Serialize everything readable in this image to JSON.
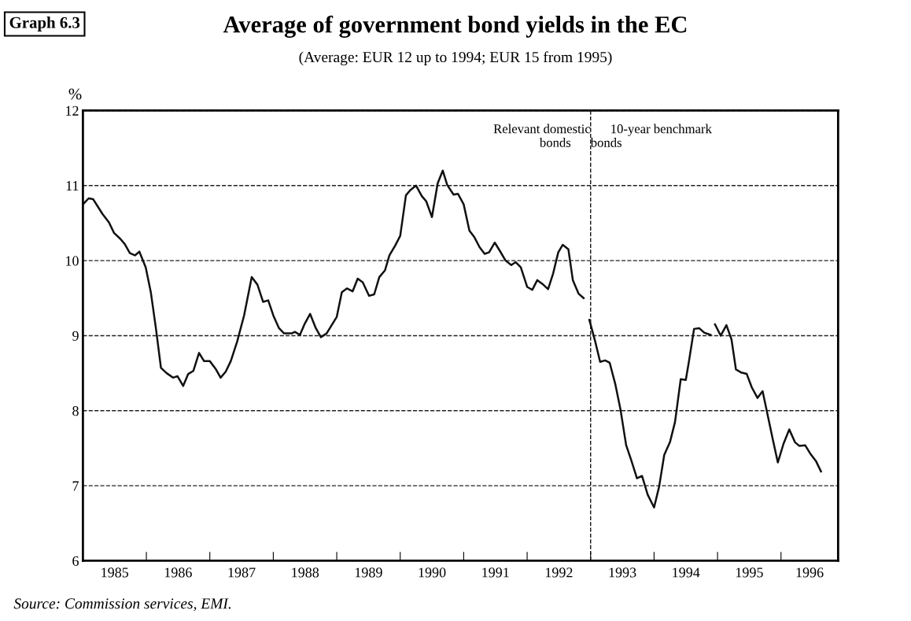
{
  "chart_data": {
    "type": "line",
    "title": "Average of government bond yields in the EC",
    "subtitle": "(Average: EUR 12 up to 1994; EUR 15 from 1995)",
    "ylabel": "%",
    "x": [
      1985.0,
      1985.09,
      1985.16,
      1985.31,
      1985.41,
      1985.49,
      1985.59,
      1985.66,
      1985.74,
      1985.82,
      1985.89,
      1985.99,
      1986.07,
      1986.15,
      1986.23,
      1986.32,
      1986.42,
      1986.49,
      1986.58,
      1986.66,
      1986.74,
      1986.83,
      1986.91,
      1987.0,
      1987.09,
      1987.17,
      1987.25,
      1987.33,
      1987.43,
      1987.54,
      1987.66,
      1987.75,
      1987.84,
      1987.92,
      1988.0,
      1988.09,
      1988.17,
      1988.29,
      1988.34,
      1988.42,
      1988.49,
      1988.58,
      1988.67,
      1988.75,
      1988.84,
      1988.92,
      1989.0,
      1989.08,
      1989.16,
      1989.25,
      1989.33,
      1989.41,
      1989.51,
      1989.59,
      1989.67,
      1989.76,
      1989.83,
      1989.92,
      1990.0,
      1990.09,
      1990.16,
      1990.25,
      1990.34,
      1990.41,
      1990.5,
      1990.59,
      1990.67,
      1990.74,
      1990.84,
      1990.91,
      1991.0,
      1991.09,
      1991.17,
      1991.25,
      1991.33,
      1991.4,
      1991.49,
      1991.57,
      1991.66,
      1991.75,
      1991.82,
      1991.9,
      1992.0,
      1992.08,
      1992.16,
      1992.24,
      1992.33,
      1992.41,
      1992.49,
      1992.56,
      1992.65,
      1992.72,
      1992.81,
      1992.89,
      1992.93,
      1992.98,
      1993.07,
      1993.15,
      1993.23,
      1993.3,
      1993.39,
      1993.47,
      1993.56,
      1993.64,
      1993.73,
      1993.81,
      1993.9,
      1994.0,
      1994.08,
      1994.16,
      1994.25,
      1994.33,
      1994.42,
      1994.5,
      1994.55,
      1994.63,
      1994.71,
      1994.79,
      1994.89,
      1994.93,
      1994.96,
      1995.05,
      1995.14,
      1995.22,
      1995.29,
      1995.37,
      1995.46,
      1995.54,
      1995.63,
      1995.71,
      1995.79,
      1995.87,
      1995.95,
      1996.04,
      1996.13,
      1996.22,
      1996.29,
      1996.38,
      1996.46,
      1996.55,
      1996.63
    ],
    "series": [
      {
        "color": "#111111",
        "values": [
          10.75,
          10.83,
          10.82,
          10.62,
          10.51,
          10.37,
          10.29,
          10.22,
          10.1,
          10.07,
          10.12,
          9.91,
          9.58,
          9.1,
          8.57,
          8.5,
          8.44,
          8.46,
          8.33,
          8.49,
          8.53,
          8.77,
          8.66,
          8.66,
          8.56,
          8.44,
          8.52,
          8.66,
          8.92,
          9.27,
          9.78,
          9.68,
          9.45,
          9.47,
          9.27,
          9.1,
          9.03,
          9.03,
          9.05,
          9.01,
          9.15,
          9.29,
          9.1,
          8.98,
          9.03,
          9.14,
          9.25,
          9.58,
          9.63,
          9.59,
          9.76,
          9.71,
          9.53,
          9.55,
          9.78,
          9.87,
          10.07,
          10.2,
          10.33,
          10.87,
          10.94,
          11.0,
          10.86,
          10.79,
          10.58,
          11.03,
          11.2,
          11.01,
          10.88,
          10.89,
          10.75,
          10.4,
          10.31,
          10.18,
          10.09,
          10.11,
          10.24,
          10.13,
          10.0,
          9.94,
          9.98,
          9.91,
          9.65,
          9.61,
          9.74,
          9.69,
          9.62,
          9.83,
          10.11,
          10.21,
          10.15,
          9.74,
          9.56,
          9.5,
          null,
          9.21,
          8.93,
          8.65,
          8.67,
          8.64,
          8.35,
          8.02,
          7.54,
          7.34,
          7.1,
          7.13,
          6.88,
          6.71,
          6.99,
          7.41,
          7.58,
          7.85,
          8.42,
          8.41,
          8.66,
          9.09,
          9.1,
          9.04,
          9.01,
          null,
          9.15,
          9.0,
          9.14,
          8.95,
          8.55,
          8.51,
          8.49,
          8.31,
          8.17,
          8.26,
          7.94,
          7.62,
          7.31,
          7.56,
          7.75,
          7.58,
          7.53,
          7.54,
          7.43,
          7.33,
          7.19
        ]
      }
    ],
    "xlim": [
      1985,
      1996.9
    ],
    "xticks": [
      {
        "value": 1985.5,
        "label": "1985"
      },
      {
        "value": 1986,
        "label": null
      },
      {
        "value": 1986.5,
        "label": "1986"
      },
      {
        "value": 1987,
        "label": null
      },
      {
        "value": 1987.5,
        "label": "1987"
      },
      {
        "value": 1988,
        "label": null
      },
      {
        "value": 1988.5,
        "label": "1988"
      },
      {
        "value": 1989,
        "label": null
      },
      {
        "value": 1989.5,
        "label": "1989"
      },
      {
        "value": 1990,
        "label": null
      },
      {
        "value": 1990.5,
        "label": "1990"
      },
      {
        "value": 1991,
        "label": null
      },
      {
        "value": 1991.5,
        "label": "1991"
      },
      {
        "value": 1992,
        "label": null
      },
      {
        "value": 1992.5,
        "label": "1992"
      },
      {
        "value": 1993,
        "label": null
      },
      {
        "value": 1993.5,
        "label": "1993"
      },
      {
        "value": 1994,
        "label": null
      },
      {
        "value": 1994.5,
        "label": "1994"
      },
      {
        "value": 1995,
        "label": null
      },
      {
        "value": 1995.5,
        "label": "1995"
      },
      {
        "value": 1996,
        "label": null
      },
      {
        "value": 1996.45,
        "label": "1996"
      }
    ],
    "ylim": [
      6,
      12
    ],
    "yticks": [
      6,
      7,
      8,
      9,
      10,
      11,
      12
    ],
    "grid": "y",
    "line_style": "solid",
    "ref_lines": [
      {
        "axis": "x",
        "value": 1993,
        "line_style": "dashed",
        "color": "#111111"
      }
    ],
    "annotations": [
      "Graph 6.3",
      "Relevant domestic\nbonds",
      "10-year benchmark\nbonds",
      "Source: Commission services, EMI."
    ]
  }
}
